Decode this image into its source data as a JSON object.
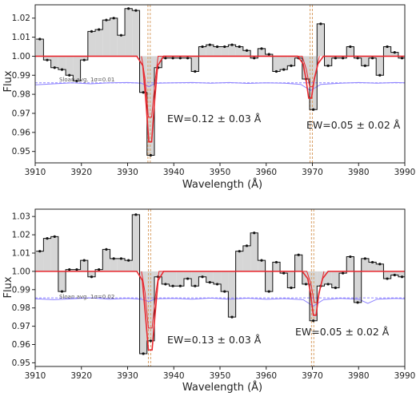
{
  "chart_data": [
    {
      "type": "step",
      "xlabel": "Wavelength (Å)",
      "ylabel": "Flux",
      "xlim": [
        3910,
        3990
      ],
      "ylim": [
        0.944,
        1.027
      ],
      "xticks": [
        3910,
        3920,
        3930,
        3940,
        3950,
        3960,
        3970,
        3980,
        3990
      ],
      "yticks": [
        0.95,
        0.96,
        0.97,
        0.98,
        0.99,
        1.0,
        1.01,
        1.02
      ],
      "ytick_labels": [
        "0.95",
        "0.96",
        "0.97",
        "0.98",
        "0.99",
        "1.00",
        "1.01",
        "1.02"
      ],
      "continuum": 1.0,
      "spectrum": {
        "x": [
          3911.0,
          3912.6,
          3914.2,
          3915.8,
          3917.4,
          3919.0,
          3920.6,
          3922.2,
          3923.8,
          3925.4,
          3927.0,
          3928.6,
          3930.2,
          3931.8,
          3933.4,
          3935.0,
          3936.6,
          3938.2,
          3939.8,
          3941.4,
          3943.0,
          3944.6,
          3946.2,
          3947.8,
          3949.4,
          3951.0,
          3952.6,
          3954.2,
          3955.8,
          3957.4,
          3959.0,
          3960.6,
          3962.2,
          3963.8,
          3965.4,
          3967.0,
          3968.6,
          3970.2,
          3971.8,
          3973.4,
          3975.0,
          3976.6,
          3978.2,
          3979.8,
          3981.4,
          3983.0,
          3984.6,
          3986.2,
          3987.8,
          3989.4
        ],
        "y": [
          1.009,
          0.998,
          0.994,
          0.993,
          0.99,
          0.987,
          0.998,
          1.013,
          1.014,
          1.019,
          1.02,
          1.011,
          1.025,
          1.024,
          0.981,
          0.948,
          0.994,
          0.999,
          0.999,
          0.999,
          0.999,
          0.992,
          1.005,
          1.006,
          1.005,
          1.005,
          1.006,
          1.005,
          1.003,
          0.999,
          1.004,
          1.001,
          0.992,
          0.993,
          0.995,
          0.999,
          0.988,
          0.972,
          1.017,
          0.995,
          0.999,
          0.999,
          1.005,
          0.999,
          0.995,
          0.999,
          0.99,
          1.005,
          1.002,
          0.999
        ]
      },
      "model": {
        "x": [
          3910,
          3932.0,
          3933.3,
          3934.0,
          3934.6,
          3935.2,
          3935.8,
          3936.5,
          3937.8,
          3966.8,
          3968.0,
          3968.6,
          3969.2,
          3969.8,
          3970.4,
          3971.2,
          3972.4,
          3990
        ],
        "y": [
          1.0,
          1.0,
          0.995,
          0.975,
          0.955,
          0.955,
          0.975,
          0.995,
          1.0,
          1.0,
          0.996,
          0.988,
          0.978,
          0.978,
          0.988,
          0.996,
          1.0,
          1.0
        ]
      },
      "model_inner": {
        "x": [
          3933.0,
          3933.8,
          3934.5,
          3935.2,
          3936.0,
          3936.6,
          3967.8,
          3968.7,
          3969.4,
          3970.1,
          3970.9,
          3971.5
        ],
        "y": [
          1.0,
          0.988,
          0.968,
          0.968,
          0.988,
          1.0,
          1.0,
          0.993,
          0.984,
          0.984,
          0.993,
          1.0
        ]
      },
      "sigma": {
        "x": [
          3910,
          3914,
          3918,
          3922,
          3926,
          3930,
          3933,
          3934.6,
          3936,
          3940,
          3944,
          3948,
          3952,
          3956,
          3960,
          3964,
          3967.5,
          3969.6,
          3971.8,
          3976,
          3980,
          3984,
          3988,
          3990
        ],
        "y": [
          0.985,
          0.9855,
          0.986,
          0.9855,
          0.986,
          0.9862,
          0.9858,
          0.984,
          0.9858,
          0.986,
          0.9862,
          0.9858,
          0.9862,
          0.9857,
          0.986,
          0.9858,
          0.9852,
          0.982,
          0.9852,
          0.9858,
          0.9862,
          0.9858,
          0.9862,
          0.986
        ]
      },
      "sloan_avg_level": 0.986,
      "vlines": [
        3934.4,
        3934.9,
        3969.5,
        3970.0
      ],
      "annotations": {
        "sigma_note": "Sloan avg. 1σ=0.01",
        "ew_k": "EW=0.12 ± 0.03 Å",
        "ew_h": "EW=0.05 ± 0.02 Å"
      },
      "colors": {
        "spectrum": "#111111",
        "model": "#e8262d",
        "fill": "#d6d6d6",
        "sigma": "#8b80ff",
        "vline": "#d9a066"
      }
    },
    {
      "type": "step",
      "xlabel": "Wavelength (Å)",
      "ylabel": "Flux",
      "xlim": [
        3910,
        3990
      ],
      "ylim": [
        0.948,
        1.034
      ],
      "xticks": [
        3910,
        3920,
        3930,
        3940,
        3950,
        3960,
        3970,
        3980,
        3990
      ],
      "yticks": [
        0.95,
        0.96,
        0.97,
        0.98,
        0.99,
        1.0,
        1.01,
        1.02,
        1.03
      ],
      "ytick_labels": [
        "0.95",
        "0.96",
        "0.97",
        "0.98",
        "0.99",
        "1.00",
        "1.01",
        "1.02",
        "1.03"
      ],
      "continuum": 1.0,
      "spectrum": {
        "x": [
          3911.0,
          3912.6,
          3914.2,
          3915.8,
          3917.4,
          3919.0,
          3920.6,
          3922.2,
          3923.8,
          3925.4,
          3927.0,
          3928.6,
          3930.2,
          3931.8,
          3933.4,
          3935.0,
          3936.6,
          3938.2,
          3939.8,
          3941.4,
          3943.0,
          3944.6,
          3946.2,
          3947.8,
          3949.4,
          3951.0,
          3952.6,
          3954.2,
          3955.8,
          3957.4,
          3959.0,
          3960.6,
          3962.2,
          3963.8,
          3965.4,
          3967.0,
          3968.6,
          3970.2,
          3971.8,
          3973.4,
          3975.0,
          3976.6,
          3978.2,
          3979.8,
          3981.4,
          3983.0,
          3984.6,
          3986.2,
          3987.8,
          3989.4
        ],
        "y": [
          1.011,
          1.018,
          1.019,
          0.989,
          1.001,
          1.001,
          1.006,
          0.997,
          1.001,
          1.012,
          1.007,
          1.007,
          1.006,
          1.031,
          0.955,
          0.962,
          0.997,
          0.993,
          0.992,
          0.992,
          0.996,
          0.992,
          0.997,
          0.994,
          0.993,
          0.989,
          0.975,
          1.011,
          1.014,
          1.021,
          1.006,
          0.989,
          1.005,
          0.999,
          0.991,
          1.009,
          0.993,
          0.973,
          0.992,
          0.993,
          0.991,
          0.999,
          1.008,
          0.983,
          1.007,
          1.005,
          1.004,
          0.996,
          0.998,
          0.997
        ]
      },
      "model": {
        "x": [
          3910,
          3932.0,
          3933.2,
          3933.9,
          3934.5,
          3935.3,
          3935.9,
          3936.6,
          3937.8,
          3967.8,
          3969.0,
          3969.6,
          3970.2,
          3970.8,
          3971.4,
          3972.2,
          3973.4,
          3990
        ],
        "y": [
          1.0,
          1.0,
          0.995,
          0.975,
          0.957,
          0.957,
          0.975,
          0.995,
          1.0,
          1.0,
          0.996,
          0.988,
          0.976,
          0.976,
          0.988,
          0.996,
          1.0,
          1.0
        ]
      },
      "model_inner": {
        "x": [
          3933.0,
          3933.8,
          3934.5,
          3935.3,
          3936.1,
          3936.8,
          3968.8,
          3969.7,
          3970.4,
          3971.1,
          3971.9,
          3972.5
        ],
        "y": [
          1.0,
          0.988,
          0.969,
          0.969,
          0.988,
          1.0,
          1.0,
          0.993,
          0.983,
          0.983,
          0.993,
          1.0
        ]
      },
      "sigma": {
        "x": [
          3910,
          3914,
          3918,
          3922,
          3926,
          3930,
          3933,
          3934.6,
          3936,
          3940,
          3944,
          3948,
          3952,
          3956,
          3960,
          3964,
          3968,
          3970.2,
          3972.4,
          3976,
          3980,
          3982,
          3984,
          3988,
          3990
        ],
        "y": [
          0.985,
          0.9845,
          0.985,
          0.9855,
          0.9848,
          0.9852,
          0.9848,
          0.9835,
          0.985,
          0.9852,
          0.9848,
          0.9854,
          0.9848,
          0.9853,
          0.9847,
          0.9851,
          0.9845,
          0.981,
          0.9845,
          0.9852,
          0.9848,
          0.9825,
          0.9848,
          0.9852,
          0.985
        ]
      },
      "sloan_avg_level": 0.9855,
      "vlines": [
        3934.5,
        3935.0,
        3969.8,
        3970.3
      ],
      "annotations": {
        "sigma_note": "Sloan avg. 1σ=0.02",
        "ew_k": "EW=0.13 ± 0.03 Å",
        "ew_h": "EW=0.05 ± 0.02 Å"
      },
      "colors": {
        "spectrum": "#111111",
        "model": "#e8262d",
        "fill": "#d6d6d6",
        "sigma": "#8b80ff",
        "vline": "#d9a066"
      }
    }
  ]
}
